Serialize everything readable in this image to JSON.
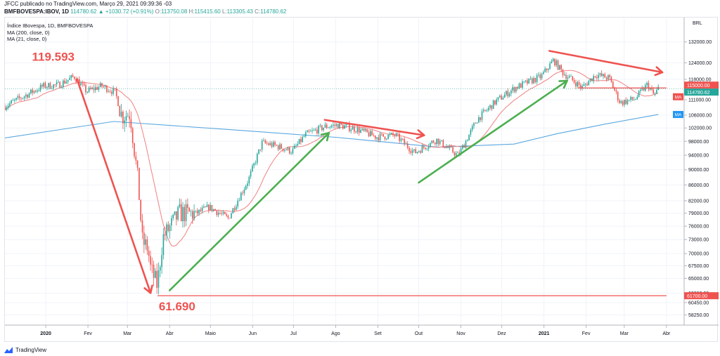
{
  "header": {
    "line1": "JFCC publicado no TradingView.com, Março 29, 2021 09:39:36 -03",
    "symbol": "BMFBOVESPA:IBOV, 1D",
    "last": "114780.62",
    "change": "+1030.72 (+0.91%)",
    "open_label": "O:",
    "open": "113750.08",
    "high_label": "H:",
    "high": "115415.60",
    "low_label": "L:",
    "low": "113305.43",
    "close_label": "C:",
    "close": "114780.62"
  },
  "legend": {
    "title": "Índice IBovespa, 1D, BMFBOVESPA",
    "ma1": "MA (200, close, 0)",
    "ma2": "MA (21, close, 0)"
  },
  "footer": {
    "brand": "TradingView"
  },
  "colors": {
    "up": "#26a69a",
    "down": "#ef5350",
    "ma200": "#5aa7e0",
    "ma21": "#f08080",
    "arrow_down": "#ef5350",
    "arrow_up": "#4caf50",
    "grid": "#f0f3fa",
    "annotation": "#ef5350"
  },
  "chart_data": {
    "type": "candlestick",
    "y_axis": {
      "unit_label": "BRL",
      "scale": "log",
      "ticks": [
        "132000.00",
        "124000.00",
        "118000.00",
        "111000.00",
        "106000.00",
        "102000.00",
        "98000.00",
        "94000.00",
        "90000.00",
        "86000.00",
        "82000.00",
        "79000.00",
        "76000.00",
        "73000.00",
        "70000.00",
        "67500.00",
        "65000.00",
        "62200.00",
        "60450.00",
        "58250.00"
      ],
      "ylim": [
        56500,
        142000
      ]
    },
    "x_axis": {
      "labels": [
        "2020",
        "Fev",
        "Mar",
        "Abr",
        "Maio",
        "Jun",
        "Jul",
        "Ago",
        "Set",
        "Out",
        "Nov",
        "Dez",
        "2021",
        "Fev",
        "Mar",
        "Abr"
      ],
      "bold": [
        "2020",
        "2021"
      ]
    },
    "price_labels": [
      {
        "value": 115000,
        "text": "115000.00",
        "color": "#ef5350"
      },
      {
        "value": 114780.62,
        "text": "114780.62",
        "color": "#26a69a"
      },
      {
        "value": 61700,
        "text": "61700.00",
        "color": "#ef5350"
      }
    ],
    "ma_tags": [
      {
        "text": "MA",
        "value": 112000,
        "color": "#ef5350"
      },
      {
        "text": "MA",
        "value": 106200,
        "color": "#2196f3"
      }
    ],
    "annotations": [
      {
        "text": "119.593",
        "value": 119593,
        "date": "2020-01-22"
      },
      {
        "text": "61.690",
        "value": 61690,
        "date": "2020-03-23"
      }
    ],
    "horizontal_lines": [
      {
        "value": 61700,
        "from": "2020-03-23",
        "to": "2021-04-01",
        "color": "#ef5350"
      },
      {
        "value": 115000,
        "from": "2021-01-26",
        "to": "2021-04-01",
        "color": "#ef5350"
      }
    ],
    "trend_arrows": [
      {
        "from": {
          "date": "2020-01-24",
          "value": 118000
        },
        "to": {
          "date": "2020-03-18",
          "value": 62200
        },
        "color": "#ef5350"
      },
      {
        "from": {
          "date": "2020-04-01",
          "value": 62700
        },
        "to": {
          "date": "2020-07-27",
          "value": 100500
        },
        "color": "#4caf50"
      },
      {
        "from": {
          "date": "2020-07-24",
          "value": 104500
        },
        "to": {
          "date": "2020-10-05",
          "value": 99800
        },
        "color": "#ef5350"
      },
      {
        "from": {
          "date": "2020-10-01",
          "value": 86600
        },
        "to": {
          "date": "2021-01-18",
          "value": 117500
        },
        "color": "#4caf50"
      },
      {
        "from": {
          "date": "2021-01-05",
          "value": 128500
        },
        "to": {
          "date": "2021-03-29",
          "value": 120500
        },
        "color": "#ef5350"
      }
    ],
    "close_series": [
      [
        "2019-12-02",
        108900
      ],
      [
        "2019-12-16",
        112200
      ],
      [
        "2019-12-30",
        115600
      ],
      [
        "2020-01-10",
        116000
      ],
      [
        "2020-01-22",
        119000
      ],
      [
        "2020-01-31",
        113800
      ],
      [
        "2020-02-11",
        115700
      ],
      [
        "2020-02-21",
        113500
      ],
      [
        "2020-02-26",
        105700
      ],
      [
        "2020-03-03",
        106600
      ],
      [
        "2020-03-09",
        86100
      ],
      [
        "2020-03-12",
        72600
      ],
      [
        "2020-03-16",
        71100
      ],
      [
        "2020-03-18",
        66900
      ],
      [
        "2020-03-23",
        63600
      ],
      [
        "2020-03-27",
        73400
      ],
      [
        "2020-04-08",
        79000
      ],
      [
        "2020-04-20",
        78900
      ],
      [
        "2020-04-30",
        80500
      ],
      [
        "2020-05-14",
        77800
      ],
      [
        "2020-05-29",
        87400
      ],
      [
        "2020-06-08",
        97600
      ],
      [
        "2020-06-19",
        96600
      ],
      [
        "2020-06-30",
        95100
      ],
      [
        "2020-07-10",
        100000
      ],
      [
        "2020-07-24",
        102400
      ],
      [
        "2020-08-03",
        102900
      ],
      [
        "2020-08-17",
        101500
      ],
      [
        "2020-08-31",
        99300
      ],
      [
        "2020-09-14",
        99800
      ],
      [
        "2020-09-28",
        94700
      ],
      [
        "2020-10-14",
        98500
      ],
      [
        "2020-10-30",
        93900
      ],
      [
        "2020-11-13",
        104700
      ],
      [
        "2020-11-27",
        110600
      ],
      [
        "2020-12-11",
        115100
      ],
      [
        "2020-12-30",
        119000
      ],
      [
        "2021-01-08",
        125000
      ],
      [
        "2021-01-15",
        120300
      ],
      [
        "2021-01-29",
        115100
      ],
      [
        "2021-02-08",
        119700
      ],
      [
        "2021-02-18",
        118400
      ],
      [
        "2021-02-26",
        110000
      ],
      [
        "2021-03-09",
        111300
      ],
      [
        "2021-03-18",
        116200
      ],
      [
        "2021-03-23",
        112400
      ],
      [
        "2021-03-26",
        114800
      ]
    ],
    "ma200_series": [
      [
        "2019-12-02",
        99000
      ],
      [
        "2020-02-20",
        104000
      ],
      [
        "2020-05-15",
        101500
      ],
      [
        "2020-08-01",
        99200
      ],
      [
        "2020-10-15",
        96300
      ],
      [
        "2020-12-10",
        97200
      ],
      [
        "2021-01-10",
        100200
      ],
      [
        "2021-02-15",
        103200
      ],
      [
        "2021-03-26",
        106200
      ]
    ]
  }
}
